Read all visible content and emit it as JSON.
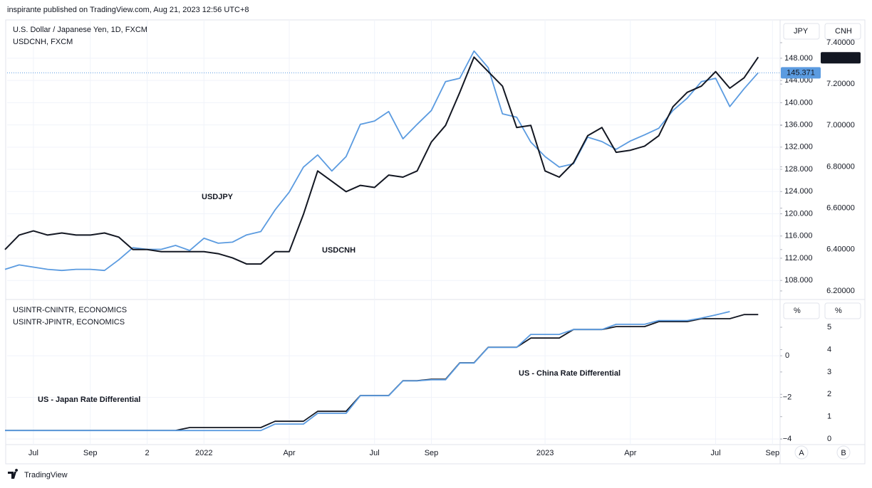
{
  "header": {
    "published": "inspirante published on TradingView.com, Aug 21, 2023 12:56 UTC+8"
  },
  "footer": {
    "brand": "TradingView"
  },
  "scale_buttons": [
    "A",
    "B"
  ],
  "chart_data": [
    {
      "type": "line",
      "y_unit": "JPY",
      "y2_unit": "CNH",
      "ylim": [
        104.7,
        154.9
      ],
      "yticks": [
        {
          "value": 148,
          "label": "148.000"
        },
        {
          "value": 144,
          "label": "144.000"
        },
        {
          "value": 140,
          "label": "140.000"
        },
        {
          "value": 136,
          "label": "136.000"
        },
        {
          "value": 132,
          "label": "132.000"
        },
        {
          "value": 128,
          "label": "128.000"
        },
        {
          "value": 124,
          "label": "124.000"
        },
        {
          "value": 120,
          "label": "120.000"
        },
        {
          "value": 116,
          "label": "116.000"
        },
        {
          "value": 112,
          "label": "112.000"
        },
        {
          "value": 108,
          "label": "108.000"
        }
      ],
      "y2lim": [
        6.162,
        7.51
      ],
      "y2ticks": [
        {
          "value": 7.4,
          "label": "7.40000"
        },
        {
          "value": 7.2,
          "label": "7.20000"
        },
        {
          "value": 7.0,
          "label": "7.00000"
        },
        {
          "value": 6.8,
          "label": "6.80000"
        },
        {
          "value": 6.6,
          "label": "6.60000"
        },
        {
          "value": 6.4,
          "label": "6.40000"
        },
        {
          "value": 6.2,
          "label": "6.20000"
        }
      ],
      "grid": true,
      "series": [
        {
          "name": "U.S. Dollar / Japanese Yen, 1D, FXCM",
          "label": "USDJPY",
          "color": "#5b9be0",
          "last": 145.371,
          "values": [
            110.0,
            110.8,
            110.4,
            110.0,
            109.8,
            110.0,
            110.0,
            109.8,
            111.7,
            113.9,
            113.6,
            113.6,
            114.3,
            113.4,
            115.6,
            114.7,
            114.9,
            116.2,
            116.8,
            120.7,
            123.9,
            128.4,
            130.6,
            127.7,
            130.3,
            136.1,
            136.7,
            138.4,
            133.5,
            136.1,
            138.6,
            143.8,
            144.4,
            149.3,
            146.3,
            138.0,
            137.4,
            132.9,
            130.3,
            128.4,
            129.0,
            133.8,
            133.0,
            131.6,
            133.1,
            134.2,
            135.4,
            138.6,
            140.8,
            143.8,
            144.4,
            139.3,
            142.5,
            145.4,
            null
          ]
        },
        {
          "name": "USDCNH, FXCM",
          "label": "USDCNH",
          "color": "#131722",
          "axis": "y2",
          "last": 7.32686,
          "values": [
            6.4,
            6.47,
            6.49,
            6.47,
            6.48,
            6.47,
            6.47,
            6.48,
            6.46,
            6.4,
            6.4,
            6.39,
            6.39,
            6.39,
            6.39,
            6.38,
            6.36,
            6.33,
            6.33,
            6.39,
            6.39,
            6.57,
            6.78,
            6.73,
            6.68,
            6.71,
            6.7,
            6.76,
            6.75,
            6.78,
            6.92,
            7.0,
            7.16,
            7.33,
            7.26,
            7.19,
            6.99,
            7.0,
            6.78,
            6.75,
            6.82,
            6.95,
            6.99,
            6.87,
            6.88,
            6.9,
            6.95,
            7.09,
            7.16,
            7.19,
            7.26,
            7.18,
            7.23,
            7.33,
            null
          ]
        }
      ]
    },
    {
      "type": "line",
      "y_unit": "%",
      "y2_unit": "%",
      "categories": [
        null,
        null,
        "Jul",
        null,
        null,
        null,
        "Sep",
        null,
        null,
        null,
        "2",
        null,
        null,
        null,
        "2022",
        null,
        null,
        null,
        null,
        null,
        "Apr",
        null,
        null,
        null,
        null,
        null,
        "Jul",
        null,
        null,
        null,
        "Sep",
        null,
        null,
        null,
        null,
        null,
        null,
        null,
        "2023",
        null,
        null,
        null,
        null,
        null,
        "Apr",
        null,
        null,
        null,
        null,
        null,
        "Jul",
        null,
        null,
        null,
        "Sep"
      ],
      "ylim": [
        -4.27,
        2.67
      ],
      "yticks": [
        0,
        {
          "value": -2,
          "label": "−2"
        },
        {
          "value": -4,
          "label": "−4"
        }
      ],
      "y2lim": [
        -0.25,
        6.21
      ],
      "y2ticks": [
        5,
        4,
        3,
        2,
        1,
        0
      ],
      "grid": true,
      "series": [
        {
          "name": "USINTR-CNINTR, ECONOMICS",
          "label": "US - China Rate Differential",
          "color": "#131722",
          "values": [
            -3.59,
            -3.59,
            -3.59,
            -3.59,
            -3.59,
            -3.59,
            -3.59,
            -3.59,
            -3.59,
            -3.59,
            -3.59,
            -3.59,
            -3.59,
            -3.45,
            -3.45,
            -3.45,
            -3.45,
            -3.45,
            -3.45,
            -3.15,
            -3.15,
            -3.15,
            -2.67,
            -2.67,
            -2.67,
            -1.91,
            -1.91,
            -1.91,
            -1.2,
            -1.2,
            -1.13,
            -1.13,
            -0.34,
            -0.34,
            0.41,
            0.41,
            0.41,
            0.85,
            0.85,
            0.85,
            1.26,
            1.26,
            1.26,
            1.4,
            1.4,
            1.4,
            1.64,
            1.64,
            1.64,
            1.78,
            1.78,
            1.78,
            1.98,
            1.98,
            null
          ]
        },
        {
          "name": "USINTR-JPINTR, ECONOMICS",
          "label": "US - Japan Rate Differential",
          "color": "#5b9be0",
          "axis": "y2",
          "values": [
            0.38,
            0.38,
            0.38,
            0.38,
            0.38,
            0.38,
            0.38,
            0.38,
            0.38,
            0.38,
            0.38,
            0.38,
            0.38,
            0.38,
            0.38,
            0.38,
            0.38,
            0.38,
            0.38,
            0.67,
            0.67,
            0.67,
            1.15,
            1.15,
            1.15,
            1.94,
            1.94,
            1.94,
            2.6,
            2.6,
            2.65,
            2.65,
            3.4,
            3.4,
            4.1,
            4.1,
            4.1,
            4.68,
            4.68,
            4.68,
            4.9,
            4.9,
            4.9,
            5.13,
            5.13,
            5.13,
            5.3,
            5.3,
            5.3,
            5.41,
            5.55,
            5.7,
            null,
            null,
            null
          ]
        }
      ]
    }
  ]
}
